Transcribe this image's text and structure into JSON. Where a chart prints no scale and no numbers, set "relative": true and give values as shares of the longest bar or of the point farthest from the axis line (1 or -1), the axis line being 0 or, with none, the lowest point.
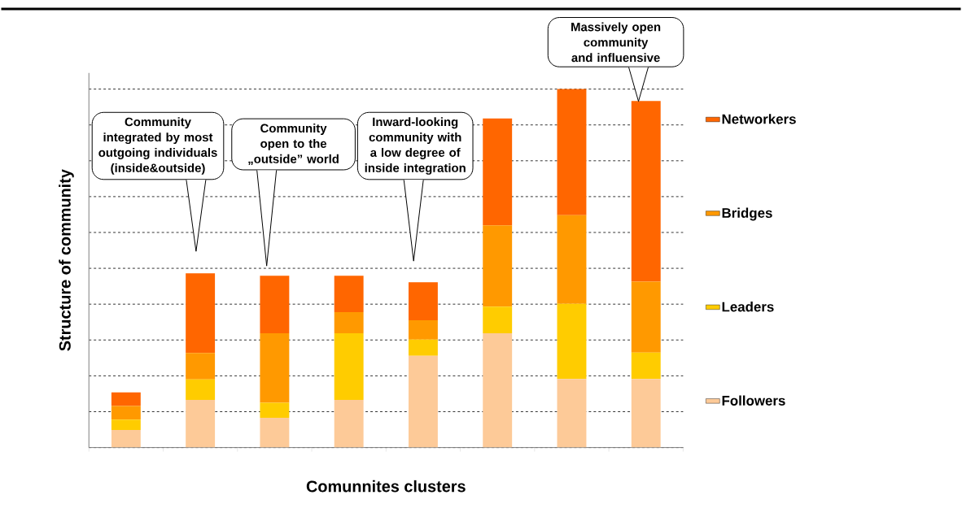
{
  "chart_data": {
    "type": "bar",
    "stacked": true,
    "relative": true,
    "xlabel": "Comunnites clusters",
    "ylabel": "Structure of community",
    "categories": [
      null,
      null,
      null,
      null,
      null,
      null,
      null,
      null
    ],
    "series": [
      {
        "name": "Followers",
        "color": "#fdca98",
        "values": [
          0.049,
          0.133,
          0.083,
          0.133,
          0.256,
          0.319,
          0.191,
          0.191
        ]
      },
      {
        "name": "Leaders",
        "color": "#ffcc00",
        "values": [
          0.029,
          0.057,
          0.042,
          0.186,
          0.045,
          0.074,
          0.21,
          0.074
        ]
      },
      {
        "name": "Bridges",
        "color": "#ff9900",
        "values": [
          0.038,
          0.074,
          0.194,
          0.059,
          0.054,
          0.227,
          0.247,
          0.198
        ]
      },
      {
        "name": "Networkers",
        "color": "#ff6600",
        "values": [
          0.038,
          0.222,
          0.16,
          0.101,
          0.106,
          0.298,
          0.352,
          0.504
        ]
      }
    ],
    "annotations": [
      "Community integrated by most outgoing individuals (inside&outside)",
      "Community open to the „outside” world",
      "Inward-looking community with a low degree of inside integration",
      "Massively open community and influensive"
    ],
    "grid": "y",
    "legend": "right"
  }
}
